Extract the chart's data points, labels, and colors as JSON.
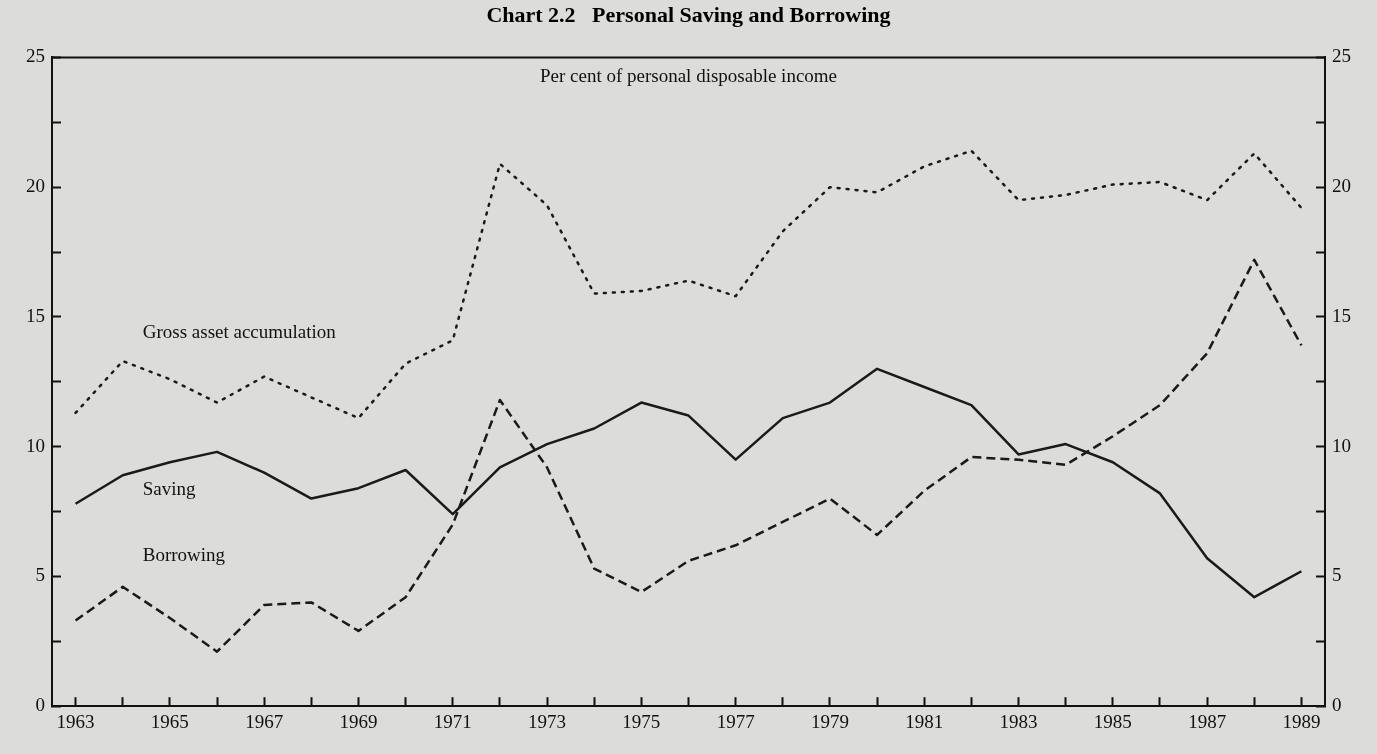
{
  "chart_data": {
    "type": "line",
    "title": "Chart 2.2   Personal Saving and Borrowing",
    "annotations": [
      "Per cent of personal disposable income"
    ],
    "x": [
      1963,
      1964,
      1965,
      1966,
      1967,
      1968,
      1969,
      1970,
      1971,
      1972,
      1973,
      1974,
      1975,
      1976,
      1977,
      1978,
      1979,
      1980,
      1981,
      1982,
      1983,
      1984,
      1985,
      1986,
      1987,
      1988,
      1989
    ],
    "series": [
      {
        "name": "Gross asset accumulation",
        "color": "#1a1a1a",
        "line_style": "dotted",
        "values": [
          11.3,
          13.3,
          12.6,
          11.7,
          12.7,
          11.9,
          11.1,
          13.2,
          14.1,
          20.9,
          19.3,
          15.9,
          16.0,
          16.4,
          15.8,
          18.3,
          20.0,
          19.8,
          20.8,
          21.4,
          19.5,
          19.7,
          20.1,
          20.2,
          19.5,
          21.3,
          19.2
        ]
      },
      {
        "name": "Saving",
        "color": "#1a1a1a",
        "line_style": "solid",
        "values": [
          7.8,
          8.9,
          9.4,
          9.8,
          9.0,
          8.0,
          8.4,
          9.1,
          7.4,
          9.2,
          10.1,
          10.7,
          11.7,
          11.2,
          9.5,
          11.1,
          11.7,
          13.0,
          12.3,
          11.6,
          9.7,
          10.1,
          9.4,
          8.2,
          5.7,
          4.2,
          5.2
        ]
      },
      {
        "name": "Borrowing",
        "color": "#1a1a1a",
        "line_style": "dashed",
        "values": [
          3.3,
          4.6,
          3.4,
          2.1,
          3.9,
          4.0,
          2.9,
          4.2,
          7.0,
          11.8,
          9.2,
          5.3,
          4.4,
          5.6,
          6.2,
          7.1,
          8.0,
          6.6,
          8.3,
          9.6,
          9.5,
          9.3,
          10.4,
          11.6,
          13.6,
          17.2,
          13.9
        ]
      }
    ],
    "xlim": [
      1962.5,
      1989.5
    ],
    "xticks": [
      1963,
      {
        "value": 1964,
        "label": null
      },
      1965,
      {
        "value": 1966,
        "label": null
      },
      1967,
      {
        "value": 1968,
        "label": null
      },
      1969,
      {
        "value": 1970,
        "label": null
      },
      1971,
      {
        "value": 1972,
        "label": null
      },
      1973,
      {
        "value": 1974,
        "label": null
      },
      1975,
      {
        "value": 1976,
        "label": null
      },
      1977,
      {
        "value": 1978,
        "label": null
      },
      1979,
      {
        "value": 1980,
        "label": null
      },
      1981,
      {
        "value": 1982,
        "label": null
      },
      1983,
      {
        "value": 1984,
        "label": null
      },
      1985,
      {
        "value": 1986,
        "label": null
      },
      1987,
      {
        "value": 1988,
        "label": null
      },
      1989
    ],
    "ylim": [
      0,
      25
    ],
    "yticks": [
      0,
      {
        "value": 2.5,
        "label": null
      },
      5,
      {
        "value": 7.5,
        "label": null
      },
      10,
      {
        "value": 12.5,
        "label": null
      },
      15,
      {
        "value": 17.5,
        "label": null
      },
      20,
      {
        "value": 22.5,
        "label": null
      },
      25
    ],
    "y2lim": [
      0,
      25
    ],
    "y2ticks": [
      0,
      {
        "value": 2.5,
        "label": null
      },
      5,
      {
        "value": 7.5,
        "label": null
      },
      10,
      {
        "value": 12.5,
        "label": null
      },
      15,
      {
        "value": 17.5,
        "label": null
      },
      20,
      {
        "value": 22.5,
        "label": null
      },
      25
    ],
    "grid": false,
    "legend": false,
    "marker": "none"
  }
}
